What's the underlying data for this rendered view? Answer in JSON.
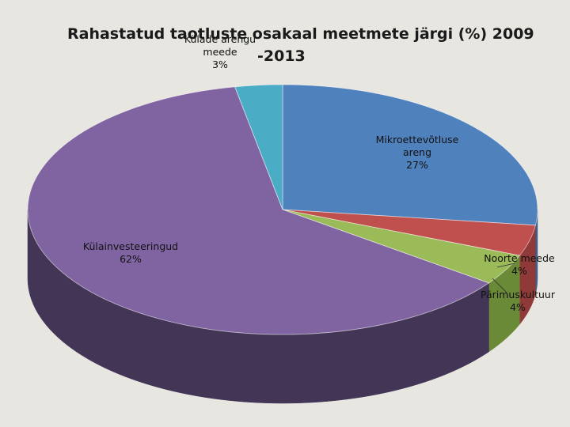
{
  "chart_data": {
    "type": "pie",
    "title_line1": "Rahastatud taotluste osakaal meetmete järgi (%)  2009",
    "title_line2": "-2013",
    "slices": [
      {
        "name": "Mikroettevõtluse areng",
        "value": 27,
        "label_lines": [
          "Mikroettevõtluse",
          "areng",
          "27%"
        ],
        "color": "#4f81bd",
        "side": "#3a6190"
      },
      {
        "name": "Noorte meede",
        "value": 4,
        "label_lines": [
          "Noorte meede",
          "4%"
        ],
        "color": "#c0504d",
        "side": "#8f3a38"
      },
      {
        "name": "Pärimuskultuur",
        "value": 4,
        "label_lines": [
          "Pärimuskultuur",
          "4%"
        ],
        "color": "#9bbb59",
        "side": "#6b8a38"
      },
      {
        "name": "Külainvesteeringud",
        "value": 62,
        "label_lines": [
          "Külainvesteeringud",
          "62%"
        ],
        "color": "#8064a2",
        "side": "#433556"
      },
      {
        "name": "Külade arengu meede",
        "value": 3,
        "label_lines": [
          "Külade arengu",
          "meede",
          "3%"
        ],
        "color": "#4bacc6",
        "side": "#357d90"
      }
    ]
  }
}
